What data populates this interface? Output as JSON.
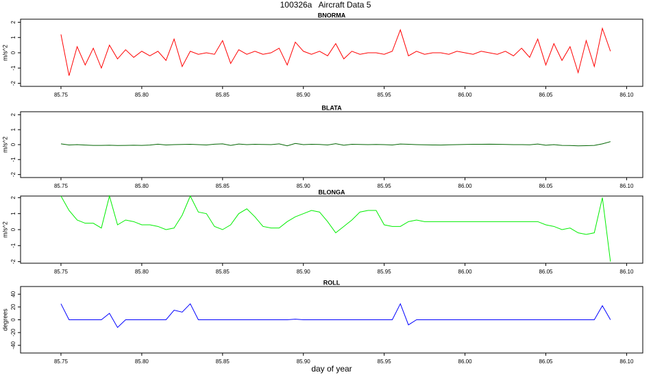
{
  "title": "100326a   Aircraft Data 5",
  "chart_data": [
    {
      "type": "line",
      "title": "BNORMA",
      "y_label": "m/s^2",
      "x": [
        85.75,
        85.755,
        85.76,
        85.765,
        85.77,
        85.775,
        85.78,
        85.785,
        85.79,
        85.795,
        85.8,
        85.805,
        85.81,
        85.815,
        85.82,
        85.825,
        85.83,
        85.835,
        85.84,
        85.845,
        85.85,
        85.855,
        85.86,
        85.865,
        85.87,
        85.875,
        85.88,
        85.885,
        85.89,
        85.895,
        85.9,
        85.905,
        85.91,
        85.915,
        85.92,
        85.925,
        85.93,
        85.935,
        85.94,
        85.945,
        85.95,
        85.955,
        85.96,
        85.965,
        85.97,
        85.975,
        85.98,
        85.985,
        85.99,
        85.995,
        86,
        86.005,
        86.01,
        86.015,
        86.02,
        86.025,
        86.03,
        86.035,
        86.04,
        86.045,
        86.05,
        86.055,
        86.06,
        86.065,
        86.07,
        86.075,
        86.08,
        86.085,
        86.09
      ],
      "series": [
        {
          "name": "BNORMA",
          "color": "#ff0000",
          "values": [
            1.2,
            -1.5,
            0.4,
            -0.8,
            0.3,
            -1.0,
            0.5,
            -0.4,
            0.2,
            -0.3,
            0.1,
            -0.2,
            0.1,
            -0.5,
            0.9,
            -0.9,
            0.1,
            -0.1,
            0,
            -0.1,
            0.8,
            -0.7,
            0.2,
            -0.1,
            0.1,
            -0.1,
            0,
            0.3,
            -0.8,
            0.7,
            0.1,
            -0.1,
            0.1,
            -0.2,
            0.6,
            -0.4,
            0.1,
            -0.1,
            0,
            0,
            -0.1,
            0.1,
            1.5,
            -0.2,
            0.1,
            -0.1,
            0,
            0,
            -0.1,
            0.1,
            0,
            -0.1,
            0.1,
            0,
            -0.1,
            0.1,
            -0.2,
            0.3,
            -0.3,
            0.9,
            -0.8,
            0.6,
            -0.5,
            0.4,
            -1.3,
            0.8,
            -0.9,
            1.6,
            0.1
          ]
        }
      ],
      "xlim": [
        85.725,
        86.11
      ],
      "ylim": [
        -2.2,
        2.2
      ],
      "xticks": [
        85.75,
        {
          "value": 85.8,
          "label": "85.80"
        },
        85.85,
        {
          "value": 85.9,
          "label": "85.90"
        },
        85.95,
        {
          "value": 86.0,
          "label": "86.00"
        },
        86.05,
        {
          "value": 86.1,
          "label": "86.10"
        }
      ],
      "yticks": [
        -2,
        -1,
        0,
        1,
        2
      ]
    },
    {
      "type": "line",
      "title": "BLATA",
      "y_label": "m/s^2",
      "x": [
        85.75,
        85.755,
        85.76,
        85.765,
        85.77,
        85.775,
        85.78,
        85.785,
        85.79,
        85.795,
        85.8,
        85.805,
        85.81,
        85.815,
        85.82,
        85.825,
        85.83,
        85.835,
        85.84,
        85.845,
        85.85,
        85.855,
        85.86,
        85.865,
        85.87,
        85.875,
        85.88,
        85.885,
        85.89,
        85.895,
        85.9,
        85.905,
        85.91,
        85.915,
        85.92,
        85.925,
        85.93,
        85.935,
        85.94,
        85.945,
        85.95,
        85.955,
        85.96,
        85.965,
        85.97,
        85.975,
        85.98,
        85.985,
        85.99,
        85.995,
        86,
        86.005,
        86.01,
        86.015,
        86.02,
        86.025,
        86.03,
        86.035,
        86.04,
        86.045,
        86.05,
        86.055,
        86.06,
        86.065,
        86.07,
        86.075,
        86.08,
        86.085,
        86.09
      ],
      "series": [
        {
          "name": "BLATA",
          "color": "#006400",
          "values": [
            0.05,
            -0.02,
            0,
            -0.03,
            -0.05,
            -0.05,
            -0.04,
            -0.06,
            -0.05,
            -0.04,
            -0.05,
            -0.03,
            0.03,
            -0.02,
            0,
            0.01,
            0.02,
            0,
            -0.02,
            0.03,
            0.05,
            -0.05,
            0.04,
            0,
            0.02,
            0.01,
            0,
            0.05,
            -0.08,
            0.08,
            0,
            0.02,
            0.01,
            -0.02,
            0.06,
            -0.04,
            0.02,
            0.01,
            0,
            0.01,
            0,
            -0.02,
            0.04,
            0.02,
            0,
            -0.01,
            -0.02,
            -0.03,
            -0.01,
            0,
            0.01,
            0.02,
            0.02,
            0.03,
            0.02,
            0.01,
            0,
            0,
            -0.01,
            0.04,
            -0.04,
            0,
            -0.05,
            -0.06,
            -0.08,
            -0.07,
            -0.05,
            0.05,
            0.2
          ]
        }
      ],
      "xlim": [
        85.725,
        86.11
      ],
      "ylim": [
        -2.2,
        2.2
      ],
      "xticks": [
        85.75,
        {
          "value": 85.8,
          "label": "85.80"
        },
        85.85,
        {
          "value": 85.9,
          "label": "85.90"
        },
        85.95,
        {
          "value": 86.0,
          "label": "86.00"
        },
        86.05,
        {
          "value": 86.1,
          "label": "86.10"
        }
      ],
      "yticks": [
        -2,
        -1,
        0,
        1,
        2
      ]
    },
    {
      "type": "line",
      "title": "BLONGA",
      "y_label": "m/s^2",
      "x": [
        85.75,
        85.755,
        85.76,
        85.765,
        85.77,
        85.775,
        85.78,
        85.785,
        85.79,
        85.795,
        85.8,
        85.805,
        85.81,
        85.815,
        85.82,
        85.825,
        85.83,
        85.835,
        85.84,
        85.845,
        85.85,
        85.855,
        85.86,
        85.865,
        85.87,
        85.875,
        85.88,
        85.885,
        85.89,
        85.895,
        85.9,
        85.905,
        85.91,
        85.915,
        85.92,
        85.925,
        85.93,
        85.935,
        85.94,
        85.945,
        85.95,
        85.955,
        85.96,
        85.965,
        85.97,
        85.975,
        85.98,
        85.985,
        85.99,
        85.995,
        86,
        86.005,
        86.01,
        86.015,
        86.02,
        86.025,
        86.03,
        86.035,
        86.04,
        86.045,
        86.05,
        86.055,
        86.06,
        86.065,
        86.07,
        86.075,
        86.08,
        86.085,
        86.09
      ],
      "series": [
        {
          "name": "BLONGA",
          "color": "#00ee00",
          "values": [
            2.1,
            1.2,
            0.6,
            0.4,
            0.4,
            0.1,
            2.1,
            0.3,
            0.6,
            0.5,
            0.3,
            0.3,
            0.2,
            0,
            0.1,
            0.9,
            2.1,
            1.1,
            1.0,
            0.2,
            0,
            0.3,
            1.0,
            1.3,
            0.8,
            0.2,
            0.1,
            0.1,
            0.5,
            0.8,
            1.0,
            1.2,
            1.1,
            0.5,
            -0.2,
            0.2,
            0.6,
            1.1,
            1.2,
            1.2,
            0.3,
            0.2,
            0.2,
            0.5,
            0.6,
            0.5,
            0.5,
            0.5,
            0.5,
            0.5,
            0.5,
            0.5,
            0.5,
            0.5,
            0.5,
            0.5,
            0.5,
            0.5,
            0.5,
            0.5,
            0.3,
            0.2,
            0,
            0.1,
            -0.2,
            -0.3,
            -0.2,
            2.0,
            -2.0
          ]
        }
      ],
      "xlim": [
        85.725,
        86.11
      ],
      "ylim": [
        -2.1,
        2.1
      ],
      "xticks": [
        85.75,
        {
          "value": 85.8,
          "label": "85.80"
        },
        85.85,
        {
          "value": 85.9,
          "label": "85.90"
        },
        85.95,
        {
          "value": 86.0,
          "label": "86.00"
        },
        86.05,
        {
          "value": 86.1,
          "label": "86.10"
        }
      ],
      "yticks": [
        -2,
        -1,
        0,
        1,
        2
      ]
    },
    {
      "type": "line",
      "title": "ROLL",
      "y_label": "degrees",
      "x_label": "day of year",
      "x": [
        85.75,
        85.755,
        85.76,
        85.765,
        85.77,
        85.775,
        85.78,
        85.785,
        85.79,
        85.795,
        85.8,
        85.805,
        85.81,
        85.815,
        85.82,
        85.825,
        85.83,
        85.835,
        85.84,
        85.845,
        85.85,
        85.855,
        85.86,
        85.865,
        85.87,
        85.875,
        85.88,
        85.885,
        85.89,
        85.895,
        85.9,
        85.905,
        85.91,
        85.915,
        85.92,
        85.925,
        85.93,
        85.935,
        85.94,
        85.945,
        85.95,
        85.955,
        85.96,
        85.965,
        85.97,
        85.975,
        85.98,
        85.985,
        85.99,
        85.995,
        86,
        86.005,
        86.01,
        86.015,
        86.02,
        86.025,
        86.03,
        86.035,
        86.04,
        86.045,
        86.05,
        86.055,
        86.06,
        86.065,
        86.07,
        86.075,
        86.08,
        86.085,
        86.09
      ],
      "series": [
        {
          "name": "ROLL",
          "color": "#0000ff",
          "values": [
            25,
            0,
            0,
            0,
            0,
            0,
            10,
            -12,
            0,
            0,
            0,
            0,
            0,
            0,
            15,
            12,
            25,
            0,
            0,
            0,
            0,
            0,
            0,
            0,
            0,
            0,
            0,
            0,
            0,
            1,
            0,
            0,
            0,
            0,
            0,
            0,
            0,
            0,
            0,
            0,
            0,
            0,
            25,
            -8,
            0,
            0,
            0,
            0,
            0,
            0,
            0,
            0,
            0,
            0,
            0,
            0,
            0,
            0,
            0,
            0,
            0,
            0,
            0,
            0,
            0,
            0,
            0,
            22,
            0
          ]
        }
      ],
      "xlim": [
        85.725,
        86.11
      ],
      "ylim": [
        -52,
        52
      ],
      "xticks": [
        85.75,
        {
          "value": 85.8,
          "label": "85.80"
        },
        85.85,
        {
          "value": 85.9,
          "label": "85.90"
        },
        85.95,
        {
          "value": 86.0,
          "label": "86.00"
        },
        86.05,
        {
          "value": 86.1,
          "label": "86.10"
        }
      ],
      "yticks": [
        -40,
        -20,
        0,
        20,
        40
      ]
    }
  ]
}
